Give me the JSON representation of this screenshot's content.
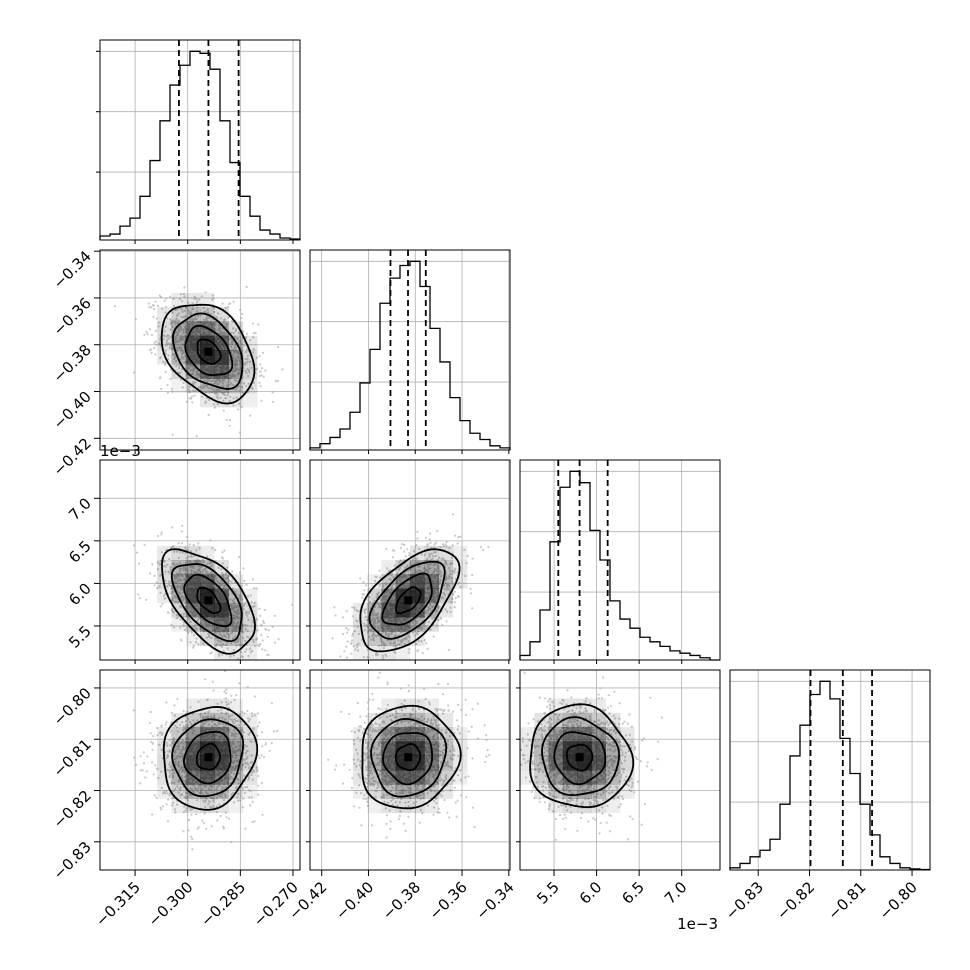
{
  "chart_data": {
    "type": "corner",
    "parameters": [
      {
        "range": [
          -0.325,
          -0.268
        ],
        "ticks": [
          -0.315,
          -0.3,
          -0.285,
          -0.27
        ],
        "tick_labels": [
          "−0.315",
          "−0.300",
          "−0.285",
          "−0.270"
        ],
        "offset": "",
        "quantiles": [
          -0.3025,
          -0.2941,
          -0.2855
        ]
      },
      {
        "range": [
          -0.425,
          -0.3395
        ],
        "ticks": [
          -0.42,
          -0.4,
          -0.38,
          -0.36,
          -0.34
        ],
        "tick_labels": [
          "−0.42",
          "−0.40",
          "−0.38",
          "−0.36",
          "−0.34"
        ],
        "offset": "",
        "quantiles": [
          -0.3906,
          -0.3831,
          -0.3755
        ]
      },
      {
        "range": [
          5.1,
          7.45
        ],
        "ticks": [
          5.5,
          6.0,
          6.5,
          7.0
        ],
        "tick_labels": [
          "5.5",
          "6.0",
          "6.5",
          "7.0"
        ],
        "offset": "1e−3",
        "quantiles": [
          5.55,
          5.8,
          6.13
        ]
      },
      {
        "range": [
          -0.8355,
          -0.7965
        ],
        "ticks": [
          -0.83,
          -0.82,
          -0.81,
          -0.8
        ],
        "tick_labels": [
          "−0.83",
          "−0.82",
          "−0.81",
          "−0.80"
        ],
        "offset": "",
        "quantiles": [
          -0.8198,
          -0.8135,
          -0.8078
        ]
      }
    ],
    "histograms": [
      {
        "counts": [
          2,
          3,
          7,
          11,
          22,
          40,
          60,
          78,
          88,
          95,
          94,
          86,
          60,
          39,
          22,
          12,
          5,
          3,
          1,
          0.5
        ]
      },
      {
        "counts": [
          1,
          3,
          6,
          10,
          18,
          32,
          48,
          70,
          82,
          88,
          90,
          78,
          58,
          42,
          25,
          14,
          8,
          5,
          2,
          1
        ]
      },
      {
        "counts": [
          2,
          8,
          22,
          52,
          76,
          83,
          78,
          57,
          44,
          26,
          18,
          14,
          10,
          8,
          6,
          4,
          3,
          2,
          1,
          0
        ]
      },
      {
        "counts": [
          1,
          3,
          6,
          9,
          14,
          30,
          52,
          66,
          80,
          86,
          78,
          60,
          44,
          30,
          16,
          6,
          3,
          1,
          0.5,
          0.2
        ]
      }
    ],
    "pairs": [
      {
        "row": 1,
        "col": 0,
        "mean": [
          -0.2941,
          -0.383
        ],
        "sd": [
          0.0066,
          0.0105
        ],
        "rho": -0.35
      },
      {
        "row": 2,
        "col": 0,
        "mean": [
          -0.2941,
          5.8
        ],
        "sd": [
          0.0066,
          0.3
        ],
        "rho": -0.55
      },
      {
        "row": 2,
        "col": 1,
        "mean": [
          -0.383,
          5.8
        ],
        "sd": [
          0.0105,
          0.3
        ],
        "rho": 0.55
      },
      {
        "row": 3,
        "col": 0,
        "mean": [
          -0.2941,
          -0.8135
        ],
        "sd": [
          0.0066,
          0.005
        ],
        "rho": 0.1
      },
      {
        "row": 3,
        "col": 1,
        "mean": [
          -0.383,
          -0.8135
        ],
        "sd": [
          0.0105,
          0.005
        ],
        "rho": 0.05
      },
      {
        "row": 3,
        "col": 2,
        "mean": [
          5.8,
          -0.8135
        ],
        "sd": [
          0.3,
          0.005
        ],
        "rho": -0.05
      }
    ],
    "grid": true,
    "levels": [
      0.5,
      1.0,
      1.5,
      2.0
    ],
    "colors": {
      "line": "#000000",
      "grid": "#b0b0b0",
      "density": "#000000",
      "points": "#9a9a9a"
    }
  }
}
